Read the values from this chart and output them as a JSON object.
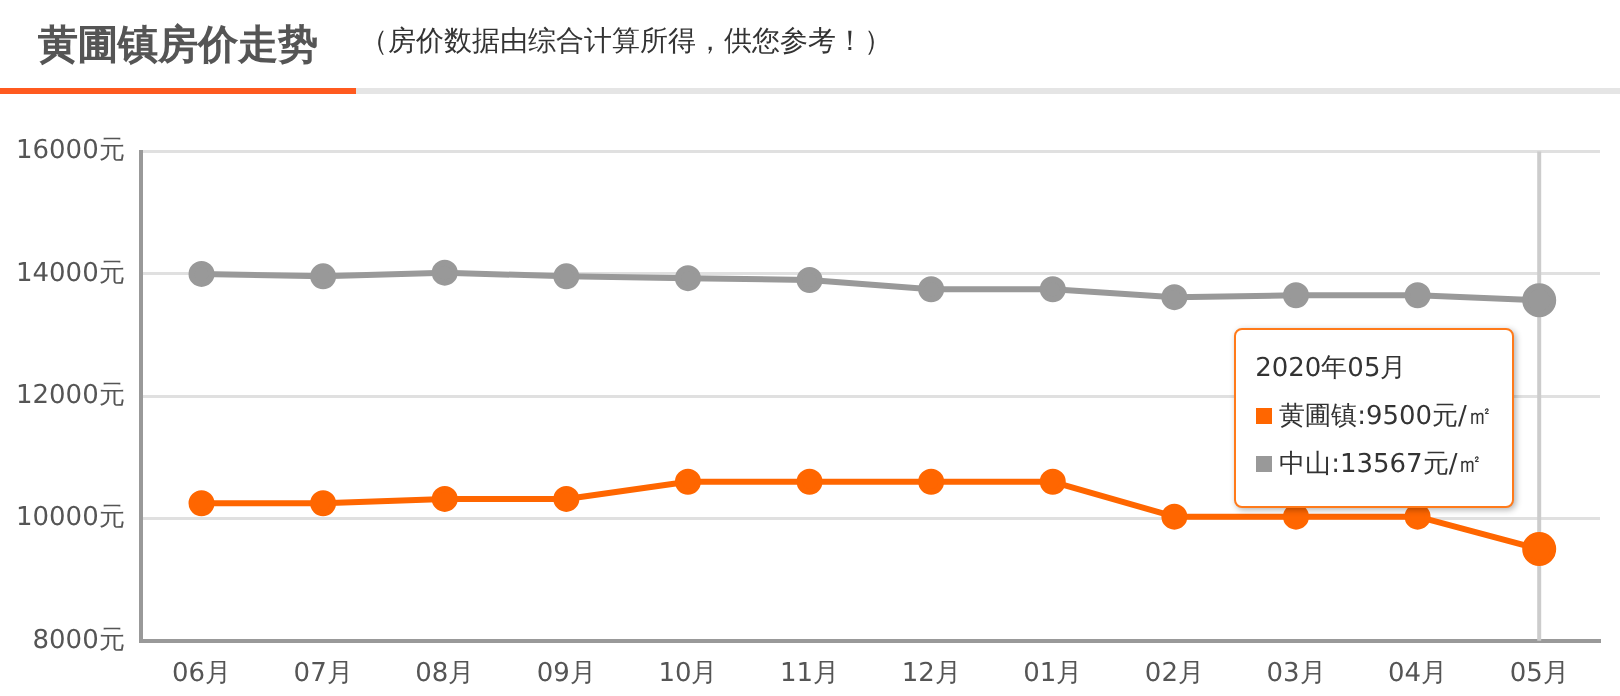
{
  "chart_data": {
    "type": "line",
    "title": "黄圃镇房价走势",
    "subtitle": "（房价数据由综合计算所得，供您参考！）",
    "categories": [
      "06月",
      "07月",
      "08月",
      "09月",
      "10月",
      "11月",
      "12月",
      "01月",
      "02月",
      "03月",
      "04月",
      "05月"
    ],
    "series": [
      {
        "color": "#ff6600",
        "values": [
          10250,
          10250,
          10320,
          10320,
          10600,
          10600,
          10600,
          10600,
          10030,
          10030,
          10030,
          9500
        ]
      },
      {
        "color": "#999999",
        "values": [
          14000,
          13960,
          14020,
          13960,
          13930,
          13900,
          13750,
          13750,
          13620,
          13650,
          13650,
          13570
        ]
      }
    ],
    "annotations": [
      "2020年05月",
      "黄圃镇:9500元/㎡",
      "中山:13567元/㎡"
    ],
    "ref_lines": [
      {
        "axis": "x",
        "value": "05月",
        "color": "#cccccc"
      }
    ],
    "ylim": [
      8000,
      16000
    ],
    "yticks": [
      {
        "value": 8000,
        "label": "8000元"
      },
      {
        "value": 10000,
        "label": "10000元"
      },
      {
        "value": 12000,
        "label": "12000元"
      },
      {
        "value": 14000,
        "label": "14000元"
      },
      {
        "value": 16000,
        "label": "16000元"
      }
    ],
    "grid": "y",
    "legend": false,
    "marker": "circle",
    "line_style": "solid"
  }
}
